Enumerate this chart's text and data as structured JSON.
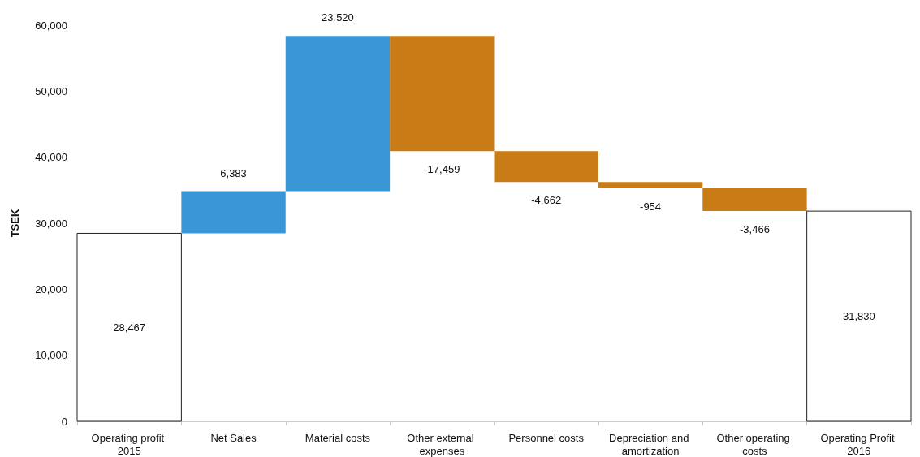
{
  "chart_data": {
    "type": "bar",
    "ylabel": "TSEK",
    "categories": [
      "Operating profit 2015",
      "Net Sales",
      "Material costs",
      "Other external expenses",
      "Personnel costs",
      "Depreciation and amortization",
      "Other operating costs",
      "Operating Profit 2016"
    ],
    "values": [
      28467,
      6383,
      23520,
      -17459,
      -4662,
      -954,
      -3466,
      31830
    ],
    "base": [
      0,
      28467,
      34850,
      58370,
      40911,
      36249,
      35295,
      0
    ],
    "colors": [
      "#ffffff",
      "#3a96d4",
      "#3a96d4",
      "#c97b16",
      "#c97b16",
      "#c97b16",
      "#c97b16",
      "#ffffff"
    ],
    "ylim": [
      0,
      60000
    ],
    "yticks": [
      0,
      {
        "value": 10000,
        "label": "10,000"
      },
      {
        "value": 20000,
        "label": "20,000"
      },
      {
        "value": 30000,
        "label": "30,000"
      },
      {
        "value": 40000,
        "label": "40,000"
      },
      {
        "value": 50000,
        "label": "50,000"
      },
      {
        "value": 60000,
        "label": "60,000"
      }
    ],
    "grid": false,
    "value_labels": [
      "28,467",
      "6,383",
      "23,520",
      "-17,459",
      "-4,662",
      "-954",
      "-3,466",
      "31,830"
    ]
  }
}
